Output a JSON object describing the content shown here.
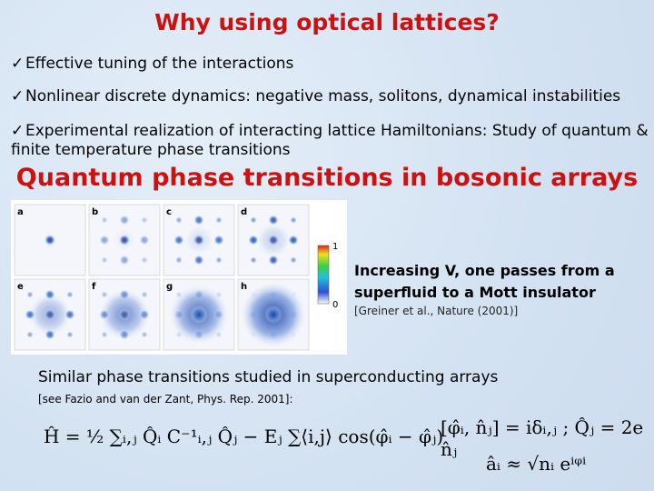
{
  "title": "Why using optical lattices?",
  "bullet_marker": "✓",
  "bullets": [
    "Effective tuning of the interactions",
    "Nonlinear discrete dynamics: negative mass, solitons, dynamical instabilities",
    "Experimental realization of interacting lattice Hamiltonians: Study of quantum & finite temperature phase transitions"
  ],
  "section_heading": "Quantum phase transitions in bosonic arrays",
  "figure": {
    "panel_labels": [
      "a",
      "b",
      "c",
      "d",
      "e",
      "f",
      "g",
      "h"
    ],
    "colorbar_max": 1,
    "colorbar_min": 0
  },
  "figure_caption": "Increasing V, one passes from a superfluid to a Mott insulator",
  "figure_reference": "[Greiner et al., Nature (2001)]",
  "note": "Similar phase transitions studied in superconducting arrays",
  "note_reference": "[see Fazio and van der Zant, Phys. Rep. 2001]:",
  "equations": {
    "hamiltonian": "Ĥ = ½ ∑ᵢ,ⱼ Q̂ᵢ C⁻¹ᵢ,ⱼ Q̂ⱼ − Eⱼ ∑⟨i,j⟩ cos(φ̂ᵢ − φ̂ⱼ)",
    "commutator": "[φ̂ᵢ, n̂ⱼ] = iδᵢ,ⱼ ;  Q̂ⱼ = 2e n̂ⱼ",
    "order_parameter": "âᵢ ≈ √nᵢ eⁱᵠⁱ"
  }
}
